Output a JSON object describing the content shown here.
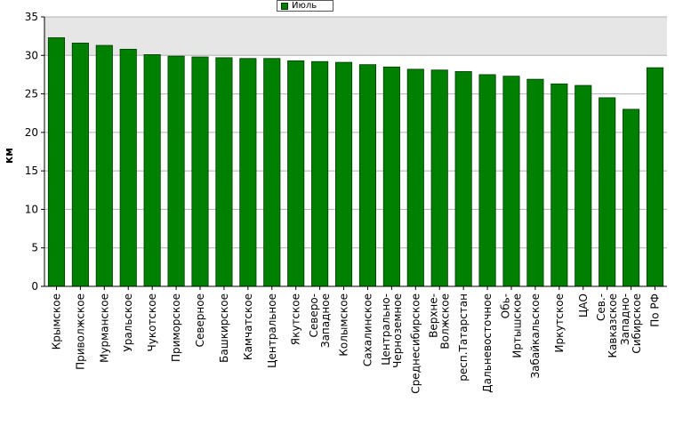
{
  "chart_data": {
    "type": "bar",
    "title": "",
    "xlabel": "",
    "ylabel": "км",
    "ylim": [
      0,
      35
    ],
    "yticks": [
      0,
      5,
      10,
      15,
      20,
      25,
      30,
      35
    ],
    "grid": true,
    "legend_position": "top-center",
    "categories": [
      [
        "Крымское"
      ],
      [
        "Приволжское"
      ],
      [
        "Мурманское"
      ],
      [
        "Уральское"
      ],
      [
        "Чукотское"
      ],
      [
        "Приморское"
      ],
      [
        "Северное"
      ],
      [
        "Башкирское"
      ],
      [
        "Камчатское"
      ],
      [
        "Центральное"
      ],
      [
        "Якутское"
      ],
      [
        "Северо-",
        "Западное"
      ],
      [
        "Колымское"
      ],
      [
        "Сахалинское"
      ],
      [
        "Центрально-",
        "Черноземное"
      ],
      [
        "Среднесибирское"
      ],
      [
        "Верхне-",
        "Волжское"
      ],
      [
        "респ.Татарстан"
      ],
      [
        "Дальневосточное"
      ],
      [
        "Обь-",
        "Иртышское"
      ],
      [
        "Забайкальское"
      ],
      [
        "Иркутское"
      ],
      [
        "ЦАО"
      ],
      [
        "Сев.-",
        "Кавказское"
      ],
      [
        "Западно-",
        "Сибирское"
      ],
      [
        "По РФ"
      ]
    ],
    "series": [
      {
        "name": "Июль",
        "color": "#008000",
        "values": [
          32.3,
          31.6,
          31.3,
          30.8,
          30.1,
          29.9,
          29.8,
          29.7,
          29.6,
          29.6,
          29.3,
          29.2,
          29.1,
          28.8,
          28.5,
          28.2,
          28.1,
          27.9,
          27.5,
          27.3,
          26.9,
          26.3,
          26.1,
          24.5,
          23.0,
          28.4
        ]
      }
    ]
  }
}
